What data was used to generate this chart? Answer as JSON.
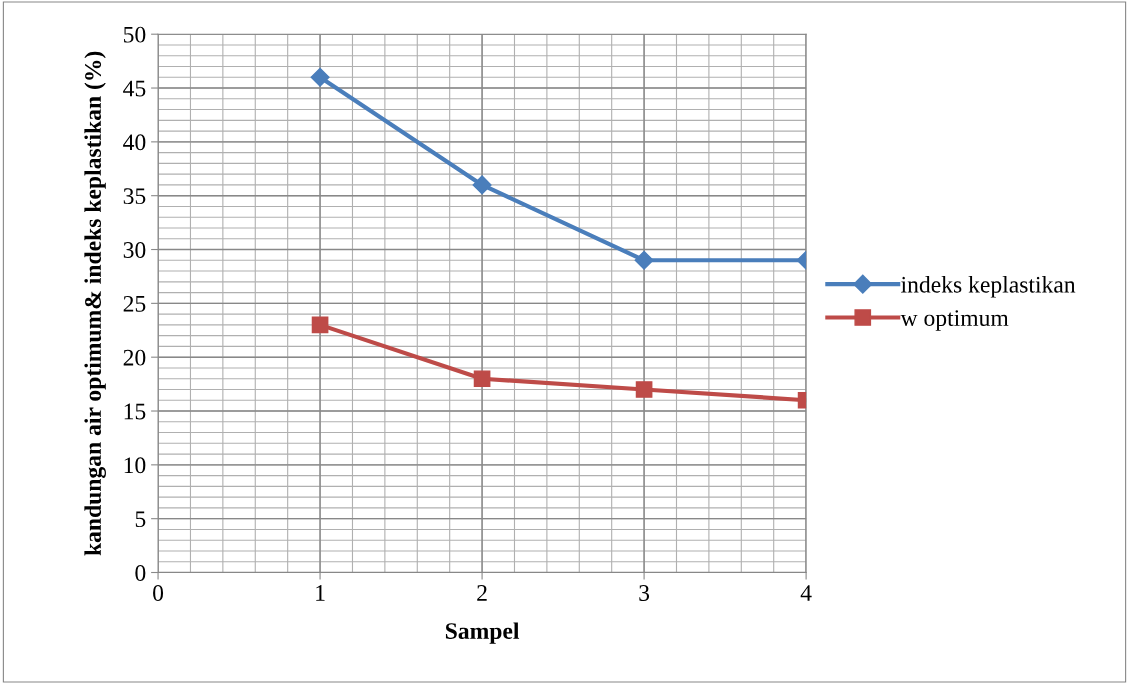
{
  "chart_data": {
    "type": "line",
    "xlabel": "Sampel",
    "ylabel": "kandungan air optimum& indeks keplastikan (%)",
    "x": [
      1,
      2,
      3,
      4
    ],
    "series": [
      {
        "name": "indeks keplastikan",
        "color": "#4a7ebb",
        "values": [
          46,
          36,
          29,
          29
        ],
        "marker": "diamond"
      },
      {
        "name": "w optimum",
        "color": "#be4b48",
        "values": [
          23,
          18,
          17,
          16
        ],
        "marker": "square"
      }
    ],
    "xlim": [
      0,
      4
    ],
    "xticks": [
      0,
      1,
      2,
      3,
      4
    ],
    "ylim": [
      0,
      50
    ],
    "yticks": [
      0,
      5,
      10,
      15,
      20,
      25,
      30,
      35,
      40,
      45,
      50
    ],
    "grid": true,
    "legend": "right",
    "line_style": "solid"
  }
}
